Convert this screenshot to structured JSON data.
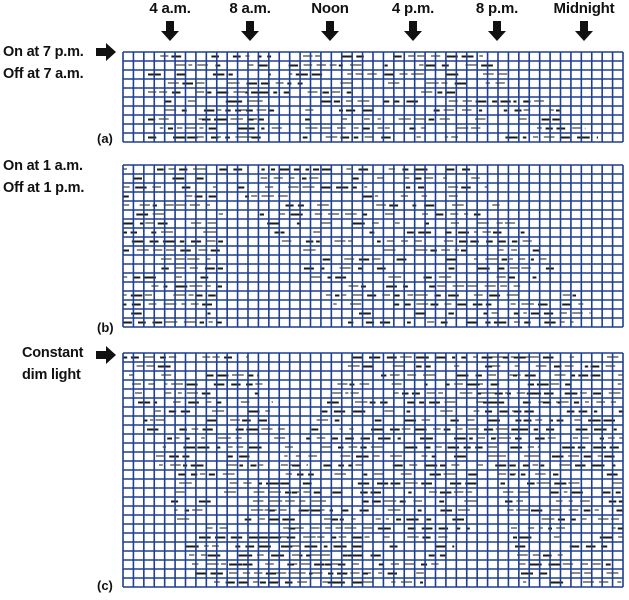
{
  "time_labels": [
    "4 a.m.",
    "8 a.m.",
    "Noon",
    "4 p.m.",
    "8 p.m.",
    "Midnight"
  ],
  "panels": [
    {
      "letter": "(a)",
      "condition": [
        "On at 7 p.m.",
        "Off at 7 a.m."
      ],
      "has_arrow": true
    },
    {
      "letter": "(b)",
      "condition": [
        "On at 1 a.m.",
        "Off at 1 p.m."
      ],
      "has_arrow": false
    },
    {
      "letter": "(c)",
      "condition": [
        "Constant",
        "dim light"
      ],
      "has_arrow": true
    }
  ],
  "colors": {
    "grid": "#1f3f8f",
    "activity": "#1a1a1a",
    "text": "#111111"
  },
  "icons": {
    "time_marker": "down-arrow-icon",
    "condition_marker": "right-arrow-icon"
  }
}
